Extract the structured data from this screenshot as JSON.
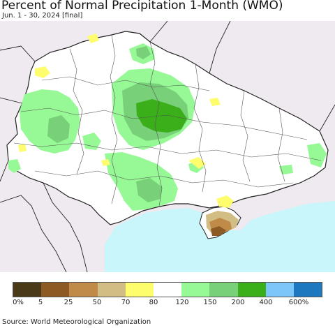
{
  "header": {
    "title": "Percent of Normal Precipitation 1-Month (WMO)",
    "subtitle": "Jun. 1 - 30, 2024 [final]"
  },
  "map": {
    "colors": {
      "land": "#ffffff",
      "neighbor_land": "#efeaf0",
      "sea": "#c9f6fb",
      "borders": "#222222",
      "oblast_lines": "#555555"
    }
  },
  "legend": {
    "colors": [
      "#4a3a18",
      "#8c5a22",
      "#c08a48",
      "#d2bd84",
      "#fdfd6e",
      "#ffffff",
      "#96f996",
      "#78d078",
      "#3aaf1a",
      "#7cc6fa",
      "#1e78c0"
    ],
    "labels": [
      "0%",
      "5",
      "25",
      "50",
      "70",
      "80",
      "120",
      "150",
      "200",
      "400",
      "600%"
    ]
  },
  "footer": {
    "source": "Source: World Meteorological Organization"
  }
}
